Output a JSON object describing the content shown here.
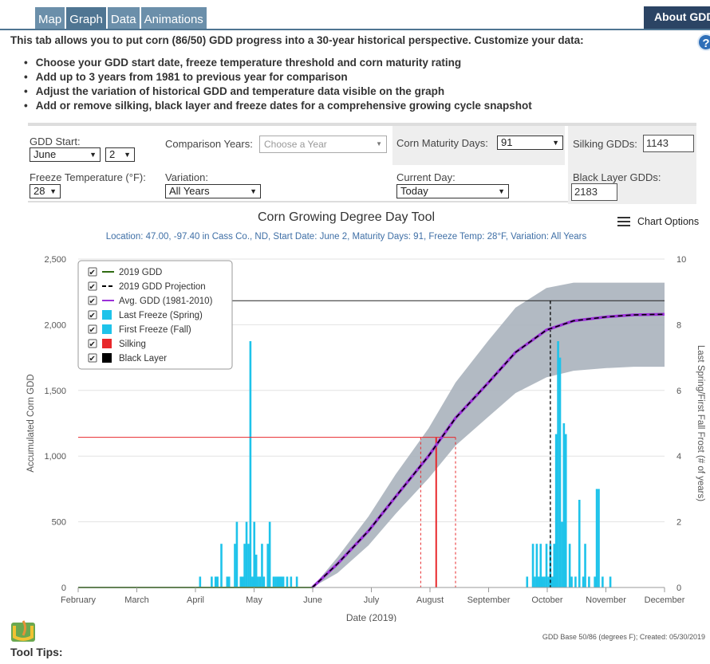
{
  "tabs": [
    {
      "label": "Map"
    },
    {
      "label": "Graph"
    },
    {
      "label": "Data"
    },
    {
      "label": "Animations"
    }
  ],
  "about_button": "About GDD",
  "help_icon": "?",
  "intro": "This tab allows you to put corn (86/50) GDD progress into a 30-year historical perspective. Customize your data:",
  "bullets": [
    "Choose your GDD start date, freeze temperature threshold and corn maturity rating",
    "Add up to 3 years from 1981 to previous year for comparison",
    "Adjust the variation of historical GDD and temperature data visible on the graph",
    "Add or remove silking, black layer and freeze dates for a comprehensive growing cycle snapshot"
  ],
  "controls": {
    "gdd_start_label": "GDD Start:",
    "gdd_start_month": "June",
    "gdd_start_day": "2",
    "comparison_label": "Comparison Years:",
    "comparison_placeholder": "Choose a Year",
    "maturity_label": "Corn Maturity Days:",
    "maturity_value": "91",
    "silking_label": "Silking GDDs:",
    "silking_value": "1143",
    "freeze_label": "Freeze Temperature (°F):",
    "freeze_value": "28",
    "variation_label": "Variation:",
    "variation_value": "All Years",
    "current_day_label": "Current Day:",
    "current_day_value": "Today",
    "black_layer_label": "Black Layer GDDs:",
    "black_layer_value": "2183"
  },
  "chart_options_label": "Chart Options",
  "footer_note": "GDD Base 50/86 (degrees F); Created: 05/30/2019",
  "tool_tips_label": "Tool Tips:",
  "colors": {
    "gdd_2019": "#2f6b12",
    "projection": "#000000",
    "avg": "#9b30d9",
    "freeze": "#1ec3ea",
    "silking": "#e8282b",
    "black_layer": "#000000",
    "band": "#aab2bd"
  },
  "chart_data": {
    "type": "line",
    "title": "Corn Growing Degree Day Tool",
    "subtitle": "Location: 47.00, -97.40 in Cass Co., ND, Start Date: June 2, Maturity Days: 91, Freeze Temp: 28°F, Variation: All Years",
    "xlabel": "Date (2019)",
    "ylabel": "Accumulated Corn GDD",
    "y2label": "Last Spring/First Fall Frost (# of years)",
    "x_ticks": [
      "February",
      "March",
      "April",
      "May",
      "June",
      "July",
      "August",
      "September",
      "October",
      "November",
      "December"
    ],
    "xlim": [
      "2019-02-01",
      "2019-12-01"
    ],
    "ylim": [
      0,
      2500
    ],
    "y_ticks": [
      "0",
      "500",
      "1,000",
      "1,500",
      "2,000",
      "2,500"
    ],
    "y2lim": [
      0,
      10
    ],
    "y2_ticks": [
      "0",
      "2",
      "4",
      "6",
      "8",
      "10"
    ],
    "grid": true,
    "legend_position": "top-left",
    "legend": [
      {
        "label": "2019 GDD",
        "style": "line",
        "color": "#2f6b12"
      },
      {
        "label": "2019 GDD Projection",
        "style": "dash",
        "color": "#000000"
      },
      {
        "label": "Avg. GDD (1981-2010)",
        "style": "line",
        "color": "#9b30d9"
      },
      {
        "label": "Last Freeze (Spring)",
        "style": "box",
        "color": "#1ec3ea"
      },
      {
        "label": "First Freeze (Fall)",
        "style": "box",
        "color": "#1ec3ea"
      },
      {
        "label": "Silking",
        "style": "box",
        "color": "#e8282b"
      },
      {
        "label": "Black Layer",
        "style": "box",
        "color": "#000000"
      }
    ],
    "series": [
      {
        "name": "Avg. GDD (1981-2010)",
        "x": [
          "2019-06-02",
          "2019-06-15",
          "2019-07-01",
          "2019-07-15",
          "2019-08-01",
          "2019-08-15",
          "2019-09-01",
          "2019-09-15",
          "2019-10-01",
          "2019-10-15",
          "2019-11-01",
          "2019-11-15",
          "2019-12-01"
        ],
        "y": [
          0,
          180,
          430,
          690,
          1000,
          1290,
          1560,
          1790,
          1960,
          2030,
          2060,
          2075,
          2080
        ]
      },
      {
        "name": "2019 GDD Projection",
        "x": [
          "2019-06-02",
          "2019-06-15",
          "2019-07-01",
          "2019-07-15",
          "2019-08-01",
          "2019-08-15",
          "2019-09-01",
          "2019-09-15",
          "2019-10-01",
          "2019-10-15",
          "2019-11-01",
          "2019-11-15",
          "2019-12-01"
        ],
        "y": [
          0,
          180,
          430,
          690,
          1000,
          1290,
          1560,
          1790,
          1960,
          2030,
          2060,
          2075,
          2080
        ]
      },
      {
        "name": "Historical range",
        "x": [
          "2019-06-02",
          "2019-06-15",
          "2019-07-01",
          "2019-07-15",
          "2019-08-01",
          "2019-08-15",
          "2019-09-01",
          "2019-09-15",
          "2019-10-01",
          "2019-10-15",
          "2019-11-01",
          "2019-11-15",
          "2019-12-01"
        ],
        "low": [
          0,
          110,
          320,
          560,
          830,
          1080,
          1300,
          1480,
          1600,
          1650,
          1670,
          1680,
          1680
        ],
        "high": [
          0,
          230,
          540,
          860,
          1210,
          1560,
          1880,
          2130,
          2280,
          2320,
          2320,
          2320,
          2320
        ]
      }
    ],
    "thresholds": [
      {
        "name": "Silking",
        "gdd": 1143,
        "date": "2019-08-05",
        "range": [
          "2019-07-28",
          "2019-08-15"
        ]
      },
      {
        "name": "Black Layer",
        "gdd": 2183,
        "date": "2019-10-03"
      }
    ],
    "bars_spring": {
      "name": "Last Freeze (Spring)",
      "x": [
        "2019-04-05",
        "2019-04-11",
        "2019-04-13",
        "2019-04-14",
        "2019-04-16",
        "2019-04-19",
        "2019-04-20",
        "2019-04-23",
        "2019-04-24",
        "2019-04-26",
        "2019-04-27",
        "2019-04-28",
        "2019-04-29",
        "2019-04-30",
        "2019-05-01",
        "2019-05-02",
        "2019-05-03",
        "2019-05-04",
        "2019-05-05",
        "2019-05-06",
        "2019-05-07",
        "2019-05-08",
        "2019-05-10",
        "2019-05-11",
        "2019-05-13",
        "2019-05-14",
        "2019-05-15",
        "2019-05-16",
        "2019-05-17",
        "2019-05-18",
        "2019-05-20",
        "2019-05-22",
        "2019-05-25"
      ],
      "y": [
        0.33,
        0.33,
        0.33,
        0.33,
        1.33,
        0.33,
        0.33,
        1.33,
        2,
        0.33,
        0.33,
        1.33,
        2,
        1.33,
        7.5,
        0.33,
        2,
        1,
        0.33,
        0.33,
        1.33,
        0.33,
        1.33,
        2,
        0.33,
        0.33,
        0.33,
        0.33,
        0.33,
        0.33,
        0.33,
        0.33,
        0.33
      ]
    },
    "bars_fall": {
      "name": "First Freeze (Fall)",
      "x": [
        "2019-09-21",
        "2019-09-24",
        "2019-09-25",
        "2019-09-26",
        "2019-09-27",
        "2019-09-28",
        "2019-09-29",
        "2019-09-30",
        "2019-10-01",
        "2019-10-02",
        "2019-10-03",
        "2019-10-04",
        "2019-10-05",
        "2019-10-06",
        "2019-10-07",
        "2019-10-08",
        "2019-10-09",
        "2019-10-10",
        "2019-10-11",
        "2019-10-13",
        "2019-10-14",
        "2019-10-16",
        "2019-10-18",
        "2019-10-20",
        "2019-10-21",
        "2019-10-23",
        "2019-10-26",
        "2019-10-27",
        "2019-10-28",
        "2019-10-30",
        "2019-11-03"
      ],
      "y": [
        0.33,
        1.33,
        0.33,
        1.33,
        0.33,
        1.33,
        0.33,
        0.33,
        1.33,
        0.33,
        1.33,
        0.33,
        1.33,
        4.67,
        7.5,
        7,
        2,
        5,
        4.67,
        1.33,
        0.33,
        0.33,
        2.67,
        0.33,
        1.33,
        0.33,
        0.33,
        3,
        3,
        0.33,
        0.33
      ]
    }
  }
}
